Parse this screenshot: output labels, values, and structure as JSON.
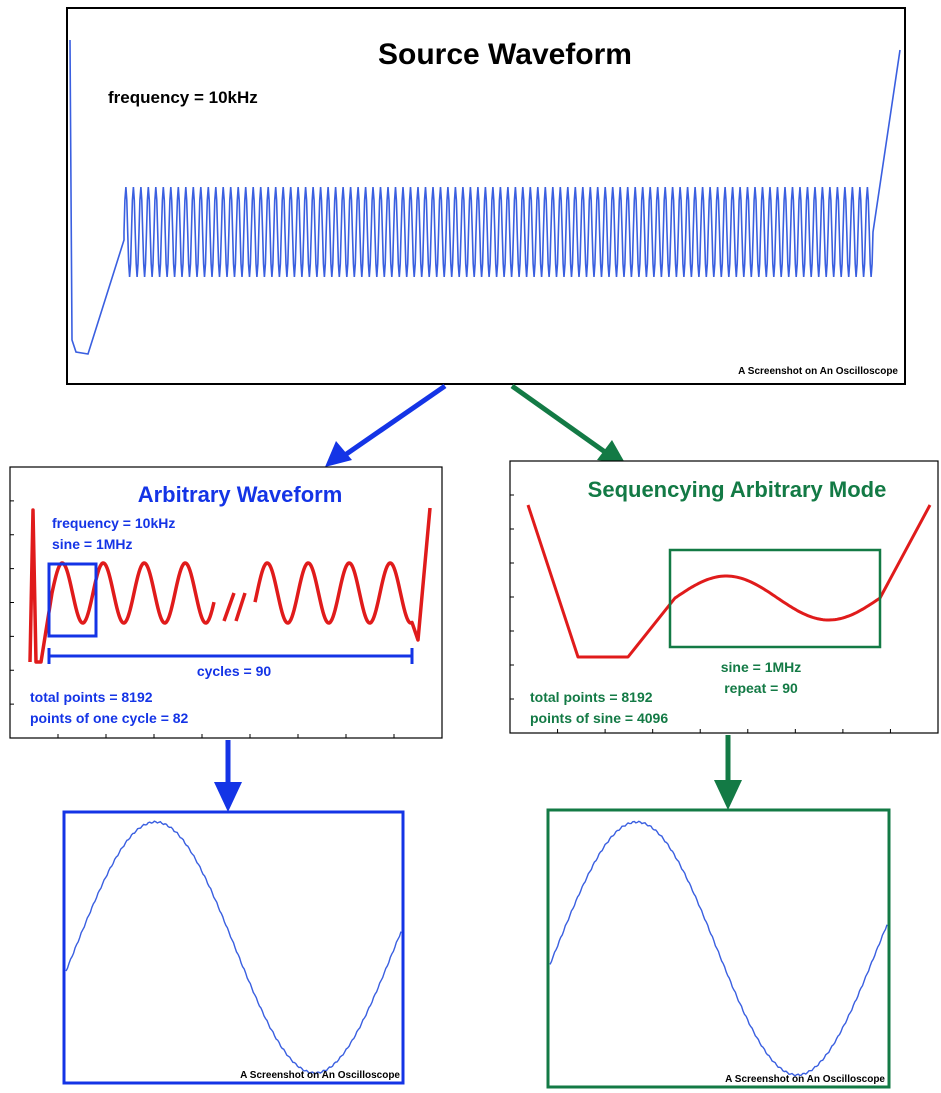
{
  "source_panel": {
    "title": "Source Waveform",
    "frequency_label": "frequency = 10kHz",
    "caption": "A Screenshot on An Oscilloscope"
  },
  "arbitrary_panel": {
    "title": "Arbitrary Waveform",
    "frequency_label": "frequency = 10kHz",
    "sine_label": "sine = 1MHz",
    "cycles_label": "cycles = 90",
    "total_points_label": "total points = 8192",
    "points_per_cycle_label": "points of one cycle = 82"
  },
  "sequencing_panel": {
    "title": "Sequencying Arbitrary Mode",
    "sine_label": "sine = 1MHz",
    "repeat_label": "repeat = 90",
    "total_points_label": "total points = 8192",
    "points_of_sine_label": "points of sine = 4096"
  },
  "result_left": {
    "caption": "A Screenshot on An Oscilloscope"
  },
  "result_right": {
    "caption": "A Screenshot on An Oscilloscope"
  },
  "colors": {
    "trace_blue": "#3a5fe0",
    "label_blue": "#1434e6",
    "label_green": "#137a45",
    "trace_red": "#e01b1b",
    "frame_black": "#000000"
  }
}
